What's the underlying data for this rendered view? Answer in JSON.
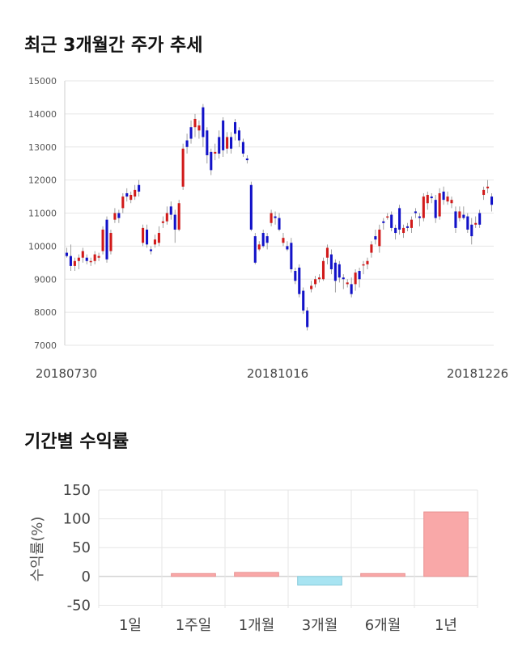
{
  "section_titles": {
    "price_trend": "최근 3개월간 주가 추세",
    "returns": "기간별 수익률"
  },
  "colors": {
    "up": "#d11a1a",
    "down": "#1212c8",
    "grid": "#e6e6e6",
    "positive_bar": "#f9a8a8",
    "negative_bar": "#a8e4f2"
  },
  "chart_data": [
    {
      "type": "candlestick",
      "title": "최근 3개월간 주가 추세",
      "ylim": [
        7000,
        15000
      ],
      "yticks": [
        "7000",
        "8000",
        "9000",
        "10000",
        "11000",
        "12000",
        "13000",
        "14000",
        "15000"
      ],
      "xtick_labels": [
        "20180730",
        "20181016",
        "20181226"
      ],
      "grid": true,
      "candles": [
        [
          9800,
          9700,
          9950,
          9650
        ],
        [
          9700,
          9400,
          10050,
          9250
        ],
        [
          9400,
          9550,
          9650,
          9250
        ],
        [
          9550,
          9650,
          9750,
          9300
        ],
        [
          9650,
          9850,
          9950,
          9500
        ],
        [
          9650,
          9550,
          9750,
          9450
        ],
        [
          9550,
          9550,
          9650,
          9400
        ],
        [
          9550,
          9750,
          9850,
          9450
        ],
        [
          9650,
          9700,
          9800,
          9550
        ],
        [
          9850,
          10500,
          10600,
          9750
        ],
        [
          10800,
          9600,
          10900,
          9500
        ],
        [
          9850,
          10400,
          10500,
          9750
        ],
        [
          10800,
          11000,
          11150,
          10700
        ],
        [
          11000,
          10850,
          11100,
          10700
        ],
        [
          11150,
          11500,
          11600,
          11000
        ],
        [
          11600,
          11500,
          11750,
          11350
        ],
        [
          11400,
          11550,
          11650,
          11300
        ],
        [
          11500,
          11700,
          11850,
          11400
        ],
        [
          11850,
          11650,
          12000,
          11500
        ],
        [
          10100,
          10550,
          10650,
          10000
        ],
        [
          10500,
          10050,
          10650,
          9950
        ],
        [
          9900,
          9850,
          10000,
          9750
        ],
        [
          10050,
          10200,
          10350,
          9950
        ],
        [
          10100,
          10400,
          10600,
          10000
        ],
        [
          10700,
          10750,
          10900,
          10550
        ],
        [
          10750,
          11000,
          11200,
          10650
        ],
        [
          11200,
          10950,
          11350,
          10800
        ],
        [
          10950,
          10500,
          11100,
          10100
        ],
        [
          10500,
          11300,
          11400,
          10450
        ],
        [
          11800,
          12950,
          13100,
          11700
        ],
        [
          13200,
          13000,
          13400,
          12800
        ],
        [
          13600,
          13250,
          13800,
          13100
        ],
        [
          13600,
          13850,
          14000,
          13300
        ],
        [
          13500,
          13650,
          13800,
          13250
        ],
        [
          14200,
          13300,
          14300,
          13000
        ],
        [
          13500,
          12750,
          13600,
          12500
        ],
        [
          12850,
          12300,
          12950,
          12150
        ],
        [
          12800,
          12850,
          13100,
          12600
        ],
        [
          13300,
          12800,
          13500,
          12650
        ],
        [
          13800,
          12900,
          13900,
          12700
        ],
        [
          12950,
          13300,
          13450,
          12800
        ],
        [
          13300,
          12950,
          13450,
          12800
        ],
        [
          13750,
          13400,
          13850,
          13200
        ],
        [
          13500,
          13200,
          13600,
          13000
        ],
        [
          13150,
          12800,
          13250,
          12700
        ],
        [
          12650,
          12600,
          12750,
          12500
        ],
        [
          11850,
          10500,
          11950,
          10450
        ],
        [
          10300,
          9500,
          10400,
          9450
        ],
        [
          9900,
          10050,
          10150,
          9850
        ],
        [
          10400,
          10000,
          10500,
          9950
        ],
        [
          10300,
          10100,
          10400,
          9900
        ],
        [
          10700,
          11000,
          11100,
          10600
        ],
        [
          10900,
          10850,
          11050,
          10650
        ],
        [
          10850,
          10500,
          11000,
          10450
        ],
        [
          10100,
          10250,
          10400,
          10000
        ],
        [
          10000,
          9900,
          10150,
          9850
        ],
        [
          10100,
          9300,
          10250,
          9200
        ],
        [
          9250,
          8950,
          9350,
          8850
        ],
        [
          9350,
          8550,
          9450,
          8450
        ],
        [
          8650,
          8050,
          8750,
          7950
        ],
        [
          8050,
          7550,
          8150,
          7450
        ],
        [
          8700,
          8800,
          8950,
          8600
        ],
        [
          8850,
          9000,
          9100,
          8750
        ],
        [
          9000,
          9050,
          9150,
          8900
        ],
        [
          9000,
          9550,
          9650,
          8950
        ],
        [
          9650,
          9950,
          10050,
          9450
        ],
        [
          9750,
          9300,
          9900,
          9150
        ],
        [
          9500,
          8950,
          9600,
          8600
        ],
        [
          9450,
          9050,
          9550,
          8900
        ],
        [
          9050,
          9000,
          9150,
          8700
        ],
        [
          8850,
          8900,
          9000,
          8750
        ],
        [
          8850,
          8550,
          9050,
          8450
        ],
        [
          8850,
          9200,
          9300,
          8650
        ],
        [
          9250,
          9000,
          9350,
          8750
        ],
        [
          9450,
          9450,
          9550,
          9150
        ],
        [
          9450,
          9550,
          9650,
          9300
        ],
        [
          9800,
          10050,
          10150,
          9650
        ],
        [
          10300,
          10200,
          10500,
          10050
        ],
        [
          10000,
          10500,
          10650,
          9800
        ],
        [
          10750,
          10700,
          10850,
          10500
        ],
        [
          10900,
          10900,
          11000,
          10800
        ],
        [
          10950,
          10550,
          11050,
          10450
        ],
        [
          10550,
          10400,
          10650,
          10200
        ],
        [
          11150,
          10500,
          11250,
          10350
        ],
        [
          10400,
          10550,
          10650,
          10250
        ],
        [
          10600,
          10550,
          10700,
          10450
        ],
        [
          10550,
          10800,
          10900,
          10400
        ],
        [
          11050,
          11000,
          11150,
          10850
        ],
        [
          10900,
          10850,
          11000,
          10600
        ],
        [
          10850,
          11500,
          11600,
          10750
        ],
        [
          11300,
          11550,
          11650,
          11100
        ],
        [
          11500,
          11450,
          11600,
          11300
        ],
        [
          11400,
          10850,
          11550,
          10700
        ],
        [
          10900,
          11600,
          11750,
          10800
        ],
        [
          11650,
          11400,
          11800,
          11250
        ],
        [
          11350,
          11500,
          11650,
          11250
        ],
        [
          11300,
          11400,
          11500,
          11150
        ],
        [
          11050,
          10550,
          11200,
          10400
        ],
        [
          10850,
          11050,
          11200,
          10750
        ],
        [
          10950,
          10850,
          11200,
          10800
        ],
        [
          10900,
          10500,
          11000,
          10400
        ],
        [
          10650,
          10300,
          10850,
          10050
        ],
        [
          10650,
          10700,
          10900,
          10550
        ],
        [
          11000,
          10650,
          11100,
          10550
        ],
        [
          11550,
          11700,
          11800,
          11400
        ],
        [
          11750,
          11800,
          12000,
          11600
        ],
        [
          11500,
          11250,
          11600,
          11050
        ]
      ]
    },
    {
      "type": "bar",
      "title": "기간별 수익률",
      "ylabel": "수익률(%)",
      "categories": [
        "1일",
        "1주일",
        "1개월",
        "3개월",
        "6개월",
        "1년"
      ],
      "values": [
        0,
        5,
        7,
        -15,
        5,
        112
      ],
      "ylim": [
        -55,
        150
      ],
      "yticks": [
        "-50",
        "0",
        "50",
        "100",
        "150"
      ],
      "grid": true
    }
  ]
}
